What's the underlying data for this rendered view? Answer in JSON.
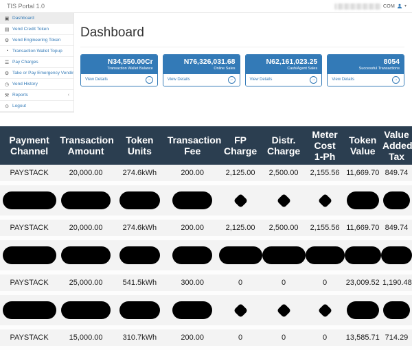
{
  "navbar": {
    "brand": "TIS Portal 1.0",
    "user_label": "COM",
    "caret": "▾"
  },
  "sidebar": {
    "items": [
      {
        "label": "Dashboard",
        "icon": "dashboard-icon",
        "glyph": "▣",
        "active": true
      },
      {
        "label": "Vend Credit Token",
        "icon": "credit-card-icon",
        "glyph": "▤"
      },
      {
        "label": "Vend Engineering Token",
        "icon": "cogs-icon",
        "glyph": "⚙"
      },
      {
        "label": "Transaction Wallet Topup",
        "icon": "gauge-icon",
        "glyph": "◔"
      },
      {
        "label": "Pay Charges",
        "icon": "cart-icon",
        "glyph": "☰"
      },
      {
        "label": "Take or Pay Emergency Vending",
        "icon": "cogs-icon",
        "glyph": "⚙"
      },
      {
        "label": "Vend History",
        "icon": "clock-icon",
        "glyph": "◷"
      },
      {
        "label": "Reports",
        "icon": "wrench-icon",
        "glyph": "⚒",
        "chevron": "‹"
      },
      {
        "label": "Logout",
        "icon": "power-icon",
        "glyph": "⊙"
      }
    ]
  },
  "main": {
    "title": "Dashboard",
    "view_details_label": "View Details",
    "cards": [
      {
        "value": "N34,550.00Cr",
        "label": "Transaction Wallet Balance"
      },
      {
        "value": "N76,326,031.68",
        "label": "Online Sales"
      },
      {
        "value": "N62,161,023.25",
        "label": "Cash/Agent Sales"
      },
      {
        "value": "8054",
        "label": "Successful Transactions"
      }
    ]
  },
  "table": {
    "columns": [
      "Payment\nChannel",
      "Transaction\nAmount",
      "Token\nUnits",
      "Transaction\nFee",
      "FP\nCharge",
      "Distr.\nCharge",
      "Meter\nCost\n1-Ph",
      "Token\nValue",
      "Value\nAdded\nTax"
    ],
    "col_widths": [
      "14.2%",
      "13.3%",
      "12.8%",
      "12.8%",
      "10.5%",
      "10.5%",
      "9.5%",
      "8.9%",
      "7.5%"
    ],
    "rows": [
      {
        "type": "data",
        "cells": [
          "PAYSTACK",
          "20,000.00",
          "274.6kWh",
          "200.00",
          "2,125.00",
          "2,500.00",
          "2,155.56",
          "11,669.70",
          "849.74"
        ]
      },
      {
        "type": "redacted",
        "pattern": "diamonds"
      },
      {
        "type": "data",
        "cells": [
          "PAYSTACK",
          "20,000.00",
          "274.6kWh",
          "200.00",
          "2,125.00",
          "2,500.00",
          "2,155.56",
          "11,669.70",
          "849.74"
        ]
      },
      {
        "type": "redacted",
        "pattern": "bar"
      },
      {
        "type": "data",
        "cells": [
          "PAYSTACK",
          "25,000.00",
          "541.5kWh",
          "300.00",
          "0",
          "0",
          "0",
          "23,009.52",
          "1,190.48"
        ]
      },
      {
        "type": "redacted",
        "pattern": "diamonds"
      },
      {
        "type": "data",
        "cells": [
          "PAYSTACK",
          "15,000.00",
          "310.7kWh",
          "200.00",
          "0",
          "0",
          "0",
          "13,585.71",
          "714.29"
        ]
      }
    ]
  },
  "colors": {
    "accent": "#337ab7",
    "table_header_bg": "#2b3e50"
  }
}
